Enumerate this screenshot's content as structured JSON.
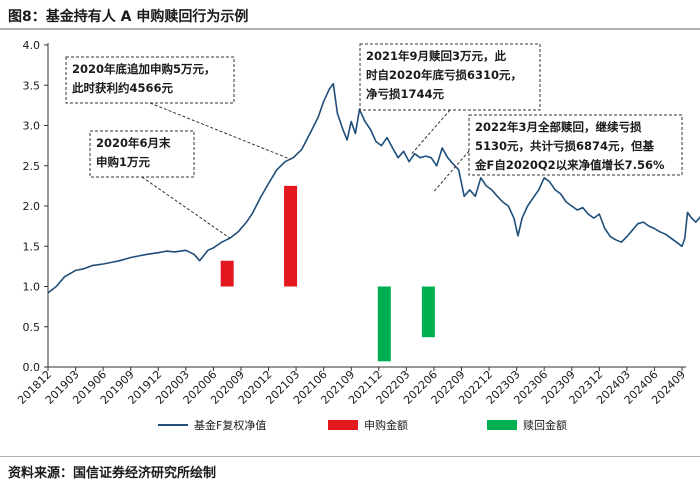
{
  "header": {
    "title": "图8：基金持有人 A 申购赎回行为示例"
  },
  "footer": {
    "source": "资料来源：国信证券经济研究所绘制"
  },
  "chart_data": {
    "type": "line+bar",
    "y_ticks": [
      "0.0",
      "0.5",
      "1.0",
      "1.5",
      "2.0",
      "2.5",
      "3.0",
      "3.5",
      "4.0"
    ],
    "ylim": [
      0,
      4
    ],
    "x_tick_labels": [
      "201812",
      "201903",
      "201906",
      "201909",
      "201912",
      "202003",
      "202006",
      "202009",
      "202012",
      "202103",
      "202106",
      "202109",
      "202112",
      "202203",
      "202206",
      "202209",
      "202212",
      "202303",
      "202306",
      "202309",
      "202312",
      "202403",
      "202406",
      "202409"
    ],
    "series": [
      {
        "name": "基金F复权净值",
        "type": "line",
        "color": "#1f4e79",
        "points": [
          [
            0,
            0.92
          ],
          [
            0.3,
            1.0
          ],
          [
            0.6,
            1.12
          ],
          [
            1,
            1.2
          ],
          [
            1.3,
            1.22
          ],
          [
            1.6,
            1.26
          ],
          [
            2,
            1.28
          ],
          [
            2.3,
            1.3
          ],
          [
            2.6,
            1.32
          ],
          [
            3,
            1.36
          ],
          [
            3.3,
            1.38
          ],
          [
            3.6,
            1.4
          ],
          [
            4,
            1.42
          ],
          [
            4.3,
            1.44
          ],
          [
            4.6,
            1.43
          ],
          [
            5,
            1.45
          ],
          [
            5.3,
            1.4
          ],
          [
            5.5,
            1.32
          ],
          [
            5.8,
            1.45
          ],
          [
            6,
            1.48
          ],
          [
            6.3,
            1.55
          ],
          [
            6.6,
            1.6
          ],
          [
            6.9,
            1.68
          ],
          [
            7.2,
            1.8
          ],
          [
            7.4,
            1.9
          ],
          [
            7.7,
            2.1
          ],
          [
            8,
            2.28
          ],
          [
            8.3,
            2.45
          ],
          [
            8.6,
            2.55
          ],
          [
            8.9,
            2.6
          ],
          [
            9.2,
            2.7
          ],
          [
            9.5,
            2.9
          ],
          [
            9.8,
            3.1
          ],
          [
            10,
            3.3
          ],
          [
            10.2,
            3.45
          ],
          [
            10.35,
            3.52
          ],
          [
            10.5,
            3.15
          ],
          [
            10.7,
            2.95
          ],
          [
            10.85,
            2.82
          ],
          [
            11,
            3.05
          ],
          [
            11.15,
            2.9
          ],
          [
            11.3,
            3.2
          ],
          [
            11.5,
            3.05
          ],
          [
            11.7,
            2.95
          ],
          [
            11.9,
            2.8
          ],
          [
            12.1,
            2.75
          ],
          [
            12.3,
            2.85
          ],
          [
            12.5,
            2.72
          ],
          [
            12.7,
            2.6
          ],
          [
            12.9,
            2.68
          ],
          [
            13.1,
            2.55
          ],
          [
            13.3,
            2.65
          ],
          [
            13.5,
            2.6
          ],
          [
            13.7,
            2.62
          ],
          [
            13.9,
            2.6
          ],
          [
            14.1,
            2.5
          ],
          [
            14.3,
            2.72
          ],
          [
            14.5,
            2.6
          ],
          [
            14.7,
            2.52
          ],
          [
            14.9,
            2.45
          ],
          [
            15.1,
            2.12
          ],
          [
            15.3,
            2.2
          ],
          [
            15.5,
            2.12
          ],
          [
            15.7,
            2.35
          ],
          [
            15.9,
            2.25
          ],
          [
            16.1,
            2.2
          ],
          [
            16.3,
            2.12
          ],
          [
            16.5,
            2.05
          ],
          [
            16.7,
            2.0
          ],
          [
            16.9,
            1.85
          ],
          [
            17.05,
            1.63
          ],
          [
            17.2,
            1.85
          ],
          [
            17.4,
            2.0
          ],
          [
            17.6,
            2.1
          ],
          [
            17.8,
            2.2
          ],
          [
            18.0,
            2.35
          ],
          [
            18.2,
            2.3
          ],
          [
            18.4,
            2.2
          ],
          [
            18.6,
            2.15
          ],
          [
            18.8,
            2.05
          ],
          [
            19.0,
            2.0
          ],
          [
            19.2,
            1.95
          ],
          [
            19.4,
            1.98
          ],
          [
            19.6,
            1.9
          ],
          [
            19.8,
            1.85
          ],
          [
            20.0,
            1.9
          ],
          [
            20.2,
            1.72
          ],
          [
            20.4,
            1.62
          ],
          [
            20.6,
            1.58
          ],
          [
            20.8,
            1.55
          ],
          [
            21.0,
            1.62
          ],
          [
            21.2,
            1.7
          ],
          [
            21.4,
            1.78
          ],
          [
            21.6,
            1.8
          ],
          [
            21.8,
            1.75
          ],
          [
            22.0,
            1.72
          ],
          [
            22.2,
            1.68
          ],
          [
            22.4,
            1.65
          ],
          [
            22.6,
            1.6
          ],
          [
            22.8,
            1.55
          ],
          [
            23.0,
            1.5
          ],
          [
            23.1,
            1.6
          ],
          [
            23.2,
            1.92
          ],
          [
            23.35,
            1.85
          ],
          [
            23.5,
            1.8
          ],
          [
            23.7,
            1.88
          ]
        ]
      },
      {
        "name": "申购金额",
        "type": "bar",
        "color": "#e3171e",
        "bars": [
          {
            "x": 6.5,
            "from": 1.0,
            "to": 1.32
          },
          {
            "x": 8.8,
            "from": 1.0,
            "to": 2.25
          }
        ]
      },
      {
        "name": "赎回金额",
        "type": "bar",
        "color": "#00b050",
        "bars": [
          {
            "x": 12.2,
            "from": 0.07,
            "to": 1.0
          },
          {
            "x": 13.8,
            "from": 0.37,
            "to": 1.0
          }
        ]
      }
    ],
    "annotations": [
      {
        "lines": [
          "2020年6月末",
          "申购1万元"
        ]
      },
      {
        "lines": [
          "2020年底追加申购5万元，",
          "此时获利约4566元"
        ]
      },
      {
        "lines": [
          "2021年9月赎回3万元，此",
          "时自2020年底亏损6310元，",
          "净亏损1744元"
        ]
      },
      {
        "lines": [
          "2022年3月全部赎回，继续亏损",
          "5130元，共计亏损6874元，但基",
          "金F自2020Q2以来净值增长7.56%"
        ]
      }
    ],
    "legend": [
      {
        "label": "基金F复权净值",
        "kind": "line",
        "color": "#1f4e79"
      },
      {
        "label": "申购金额",
        "kind": "bar",
        "color": "#e3171e"
      },
      {
        "label": "赎回金额",
        "kind": "bar",
        "color": "#00b050"
      }
    ]
  }
}
